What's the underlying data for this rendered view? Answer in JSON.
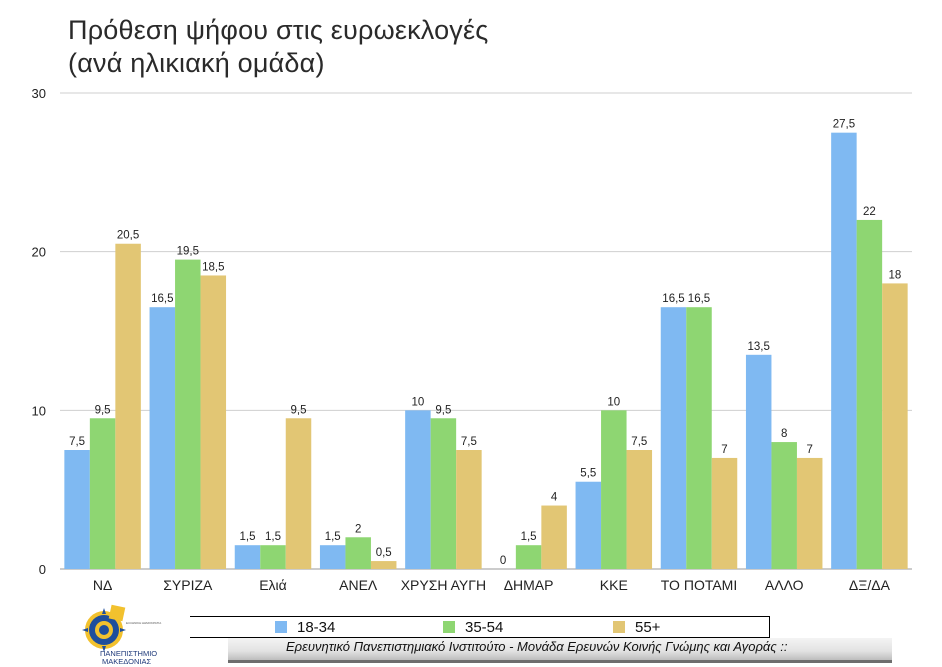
{
  "chart_data": {
    "type": "bar",
    "title": "Πρόθεση ψήφου στις ευρωεκλογές",
    "subtitle": "(ανά ηλικιακή ομάδα)",
    "categories": [
      "ΝΔ",
      "ΣΥΡΙΖΑ",
      "Ελιά",
      "ΑΝΕΛ",
      "ΧΡΥΣΗ ΑΥΓΗ",
      "ΔΗΜΑΡ",
      "ΚΚΕ",
      "ΤΟ ΠΟΤΑΜΙ",
      "ΑΛΛΟ",
      "ΔΞ/ΔΑ"
    ],
    "series": [
      {
        "name": "18-34",
        "color": "#7fb9f2",
        "values": [
          7.5,
          16.5,
          1.5,
          1.5,
          10,
          0,
          5.5,
          16.5,
          13.5,
          27.5
        ],
        "labels": [
          "7,5",
          "16,5",
          "1,5",
          "1,5",
          "10",
          "0",
          "5,5",
          "16,5",
          "13,5",
          "27,5"
        ]
      },
      {
        "name": "35-54",
        "color": "#8ed672",
        "values": [
          9.5,
          19.5,
          1.5,
          2,
          9.5,
          1.5,
          10,
          16.5,
          8,
          22
        ],
        "labels": [
          "9,5",
          "19,5",
          "1,5",
          "2",
          "9,5",
          "1,5",
          "10",
          "16,5",
          "8",
          "22"
        ]
      },
      {
        "name": "55+",
        "color": "#e2c674",
        "values": [
          20.5,
          18.5,
          9.5,
          0.5,
          7.5,
          4,
          7.5,
          7,
          7,
          18
        ],
        "labels": [
          "20,5",
          "18,5",
          "9,5",
          "0,5",
          "7,5",
          "4",
          "7,5",
          "7",
          "7",
          "18"
        ]
      }
    ],
    "ylim": [
      0,
      30
    ],
    "yticks": [
      0,
      10,
      20,
      30
    ],
    "grid": true,
    "legend_placement": "bottom"
  },
  "footer": {
    "source": "Ερευνητικό Πανεπιστημιακό Ινστιτούτο - Μονάδα Ερευνών Κοινής Γνώμης και Αγοράς ::"
  },
  "logo": {
    "name": "university-of-macedonia-logo",
    "text_line1": "ΠΑΝΕΠΙΣΤΗΜΙΟ",
    "text_line2": "ΜΑΚΕΔΟΝΙΑΣ"
  }
}
